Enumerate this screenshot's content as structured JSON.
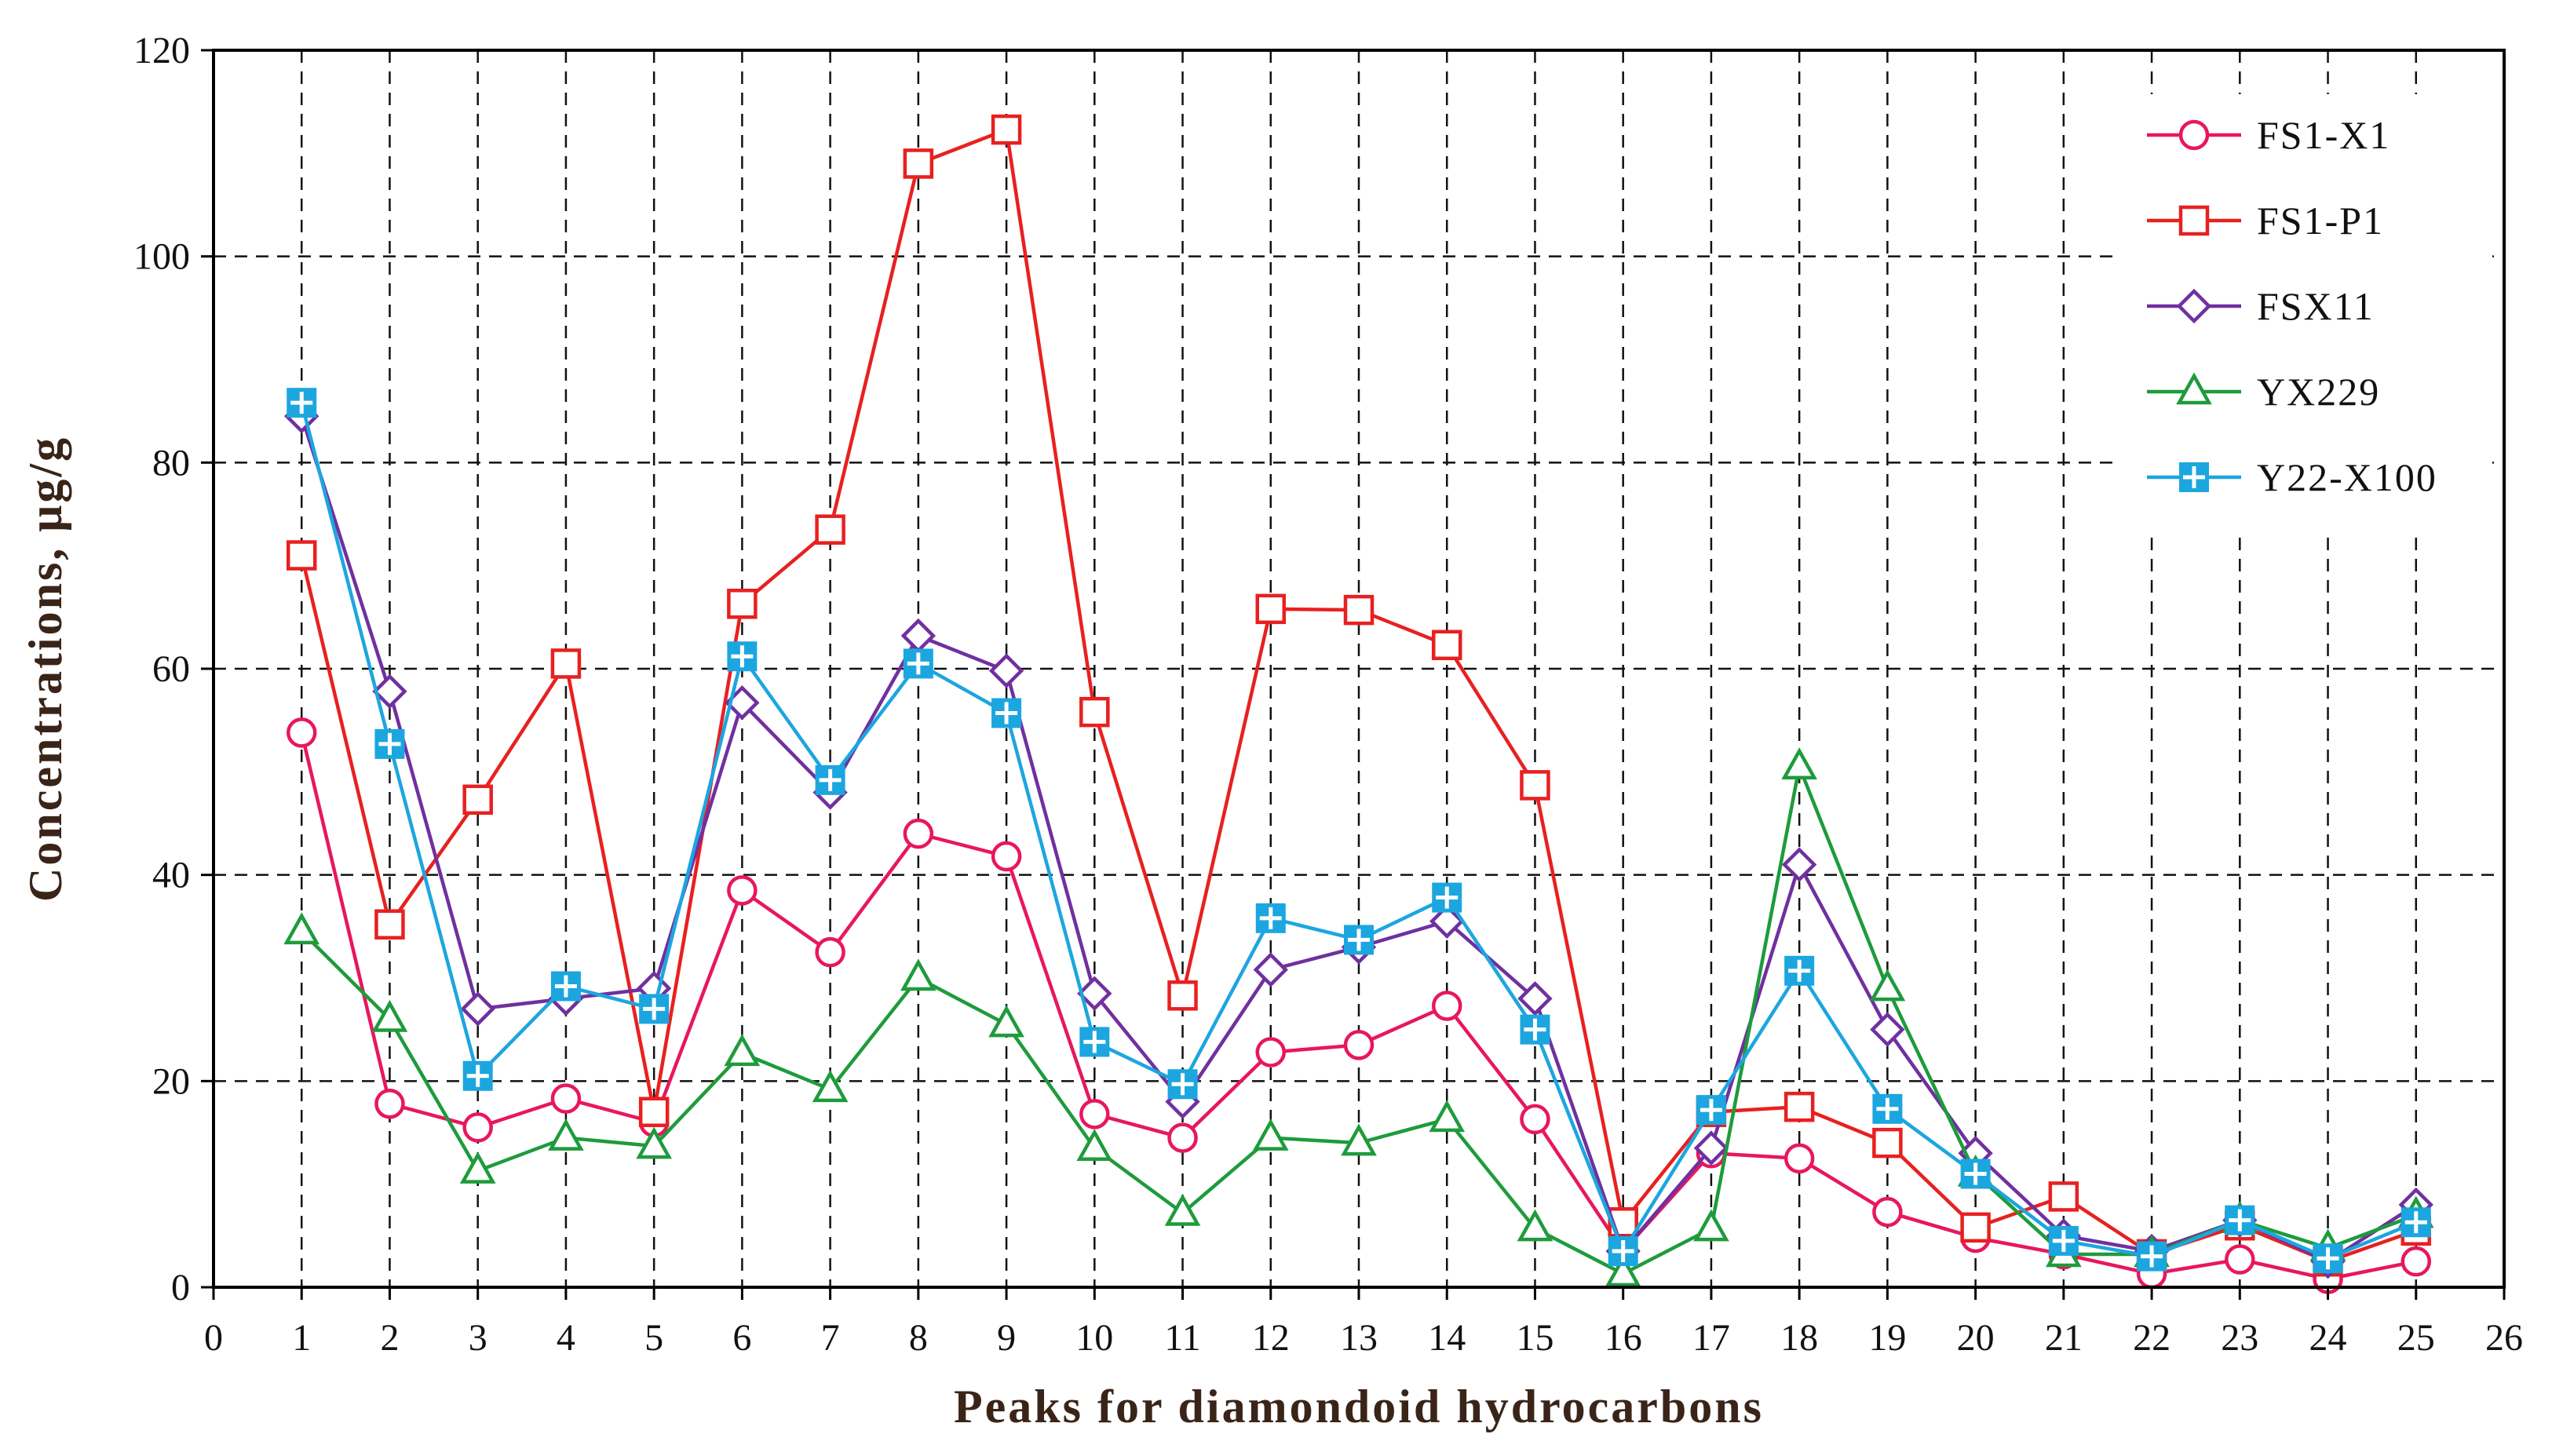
{
  "chart_data": {
    "type": "line",
    "title": "",
    "xlabel": "Peaks for diamondoid hydrocarbons",
    "ylabel": "Concentrations, μg/g",
    "xlim": [
      0,
      26
    ],
    "ylim": [
      0,
      120
    ],
    "x_ticks": [
      0,
      1,
      2,
      3,
      4,
      5,
      6,
      7,
      8,
      9,
      10,
      11,
      12,
      13,
      14,
      15,
      16,
      17,
      18,
      19,
      20,
      21,
      22,
      23,
      24,
      25,
      26
    ],
    "y_ticks": [
      0,
      20,
      40,
      60,
      80,
      100,
      120
    ],
    "x": [
      1,
      2,
      3,
      4,
      5,
      6,
      7,
      8,
      9,
      10,
      11,
      12,
      13,
      14,
      15,
      16,
      17,
      18,
      19,
      20,
      21,
      22,
      23,
      24,
      25
    ],
    "grid": true,
    "legend_position": "top-right",
    "series": [
      {
        "name": "FS1-X1",
        "color": "#e8175d",
        "marker": "circle",
        "values": [
          53.8,
          17.8,
          15.5,
          18.3,
          16.0,
          38.5,
          32.5,
          44.0,
          41.8,
          16.8,
          14.5,
          22.8,
          23.5,
          27.3,
          16.3,
          3.5,
          13.0,
          12.5,
          7.3,
          4.8,
          3.2,
          1.3,
          2.7,
          0.8,
          2.5
        ]
      },
      {
        "name": "FS1-P1",
        "color": "#e82020",
        "marker": "square",
        "values": [
          71.0,
          35.2,
          47.3,
          60.5,
          17.0,
          66.3,
          73.5,
          109.0,
          112.3,
          55.8,
          28.3,
          65.8,
          65.7,
          62.3,
          48.7,
          6.3,
          17.0,
          17.5,
          14.0,
          5.8,
          8.8,
          3.2,
          6.0,
          2.5,
          5.5
        ]
      },
      {
        "name": "FSX11",
        "color": "#7030a0",
        "marker": "diamond",
        "values": [
          84.5,
          57.8,
          27.0,
          28.0,
          29.0,
          56.7,
          48.0,
          63.2,
          59.8,
          28.5,
          18.0,
          30.8,
          33.0,
          35.5,
          28.0,
          3.5,
          13.5,
          41.0,
          25.0,
          13.0,
          5.0,
          3.5,
          6.5,
          2.5,
          8.0
        ]
      },
      {
        "name": "YX229",
        "color": "#1e9b3c",
        "marker": "triangle",
        "values": [
          34.5,
          26.0,
          11.3,
          14.5,
          13.7,
          22.7,
          19.2,
          30.0,
          25.5,
          13.5,
          7.2,
          14.5,
          14.0,
          16.3,
          5.7,
          1.3,
          5.7,
          50.5,
          29.0,
          11.0,
          3.2,
          3.2,
          6.5,
          3.8,
          7.0
        ]
      },
      {
        "name": "Y22-X100",
        "color": "#1ca6df",
        "marker": "cross-square",
        "values": [
          85.8,
          52.7,
          20.5,
          29.2,
          27.0,
          61.2,
          49.2,
          60.5,
          55.7,
          23.8,
          19.7,
          35.8,
          33.7,
          37.8,
          25.0,
          3.5,
          17.2,
          30.7,
          17.3,
          11.0,
          4.5,
          3.0,
          6.5,
          2.8,
          6.3
        ]
      }
    ]
  }
}
